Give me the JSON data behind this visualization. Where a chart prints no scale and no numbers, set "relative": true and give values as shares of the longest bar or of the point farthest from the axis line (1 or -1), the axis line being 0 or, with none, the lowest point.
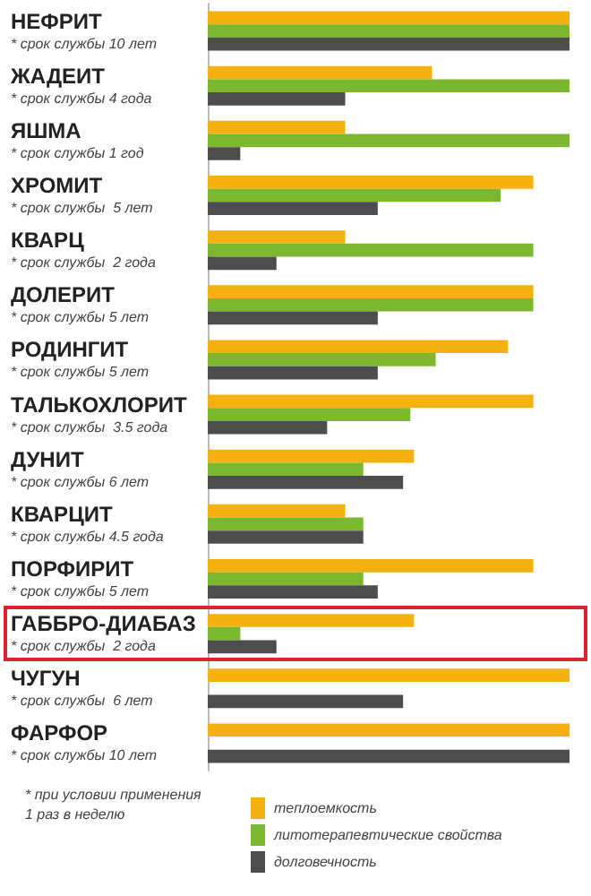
{
  "chart_data": {
    "type": "bar",
    "orientation": "horizontal",
    "relative": true,
    "categories": [
      "НЕФРИТ\n* срок службы 10 лет",
      "ЖАДЕИТ\n* срок службы 4 года",
      "ЯШМА\n* срок службы 1 год",
      "ХРОМИТ\n* срок службы  5 лет",
      "КВАРЦ\n* срок службы  2 года",
      "ДОЛЕРИТ\n* срок службы 5 лет",
      "РОДИНГИТ\n* срок службы 5 лет",
      "ТАЛЬКОХЛОРИТ\n* срок службы  3.5 года",
      "ДУНИТ\n* срок службы 6 лет",
      "КВАРЦИТ\n* срок службы 4.5 года",
      "ПОРФИРИТ\n* срок службы 5 лет",
      "ГАББРО-ДИАБАЗ\n* срок службы  2 года",
      "ЧУГУН\n* срок службы  6 лет",
      "ФАРФОР\n* срок службы 10 лет"
    ],
    "series": [
      {
        "name": "теплоемкость",
        "color": "#f5b111",
        "values": [
          1,
          0.62,
          0.38,
          0.9,
          0.38,
          0.9,
          0.83,
          0.9,
          0.57,
          0.38,
          0.9,
          0.57,
          1,
          1
        ]
      },
      {
        "name": "литотерапевтические свойства",
        "color": "#7cb82f",
        "values": [
          1,
          1,
          1,
          0.81,
          0.9,
          0.9,
          0.63,
          0.56,
          0.43,
          0.43,
          0.43,
          0.09,
          null,
          null
        ]
      },
      {
        "name": "долговечность",
        "color": "#4d4d4d",
        "values": [
          1,
          0.38,
          0.09,
          0.47,
          0.19,
          0.47,
          0.47,
          0.33,
          0.54,
          0.43,
          0.47,
          0.19,
          0.54,
          1
        ]
      }
    ],
    "annotations": [
      "* при условии применения\n1 раз в неделю"
    ],
    "legend": "bottom",
    "grid": false
  }
}
